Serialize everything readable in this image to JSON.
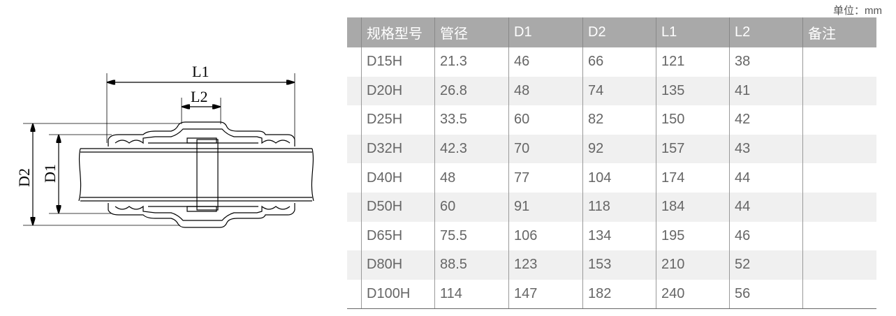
{
  "unit_label": "单位：mm",
  "drawing_labels": {
    "L1": "L1",
    "L2": "L2",
    "D1": "D1",
    "D2": "D2"
  },
  "table": {
    "headers": [
      "规格型号",
      "管径",
      "D1",
      "D2",
      "L1",
      "L2",
      "备注"
    ],
    "rows": [
      [
        "D15H",
        "21.3",
        "46",
        "66",
        "121",
        "38",
        ""
      ],
      [
        "D20H",
        "26.8",
        "48",
        "74",
        "135",
        "41",
        ""
      ],
      [
        "D25H",
        "33.5",
        "60",
        "82",
        "150",
        "42",
        ""
      ],
      [
        "D32H",
        "42.3",
        "70",
        "92",
        "157",
        "43",
        ""
      ],
      [
        "D40H",
        "48",
        "77",
        "104",
        "174",
        "44",
        ""
      ],
      [
        "D50H",
        "60",
        "91",
        "118",
        "184",
        "44",
        ""
      ],
      [
        "D65H",
        "75.5",
        "106",
        "134",
        "195",
        "46",
        ""
      ],
      [
        "D80H",
        "88.5",
        "123",
        "153",
        "210",
        "52",
        ""
      ],
      [
        "D100H",
        "114",
        "147",
        "182",
        "240",
        "56",
        ""
      ]
    ]
  },
  "colors": {
    "header_bg": "#a9a9a9",
    "stripe": "#f0f0f0",
    "text": "#666666"
  }
}
